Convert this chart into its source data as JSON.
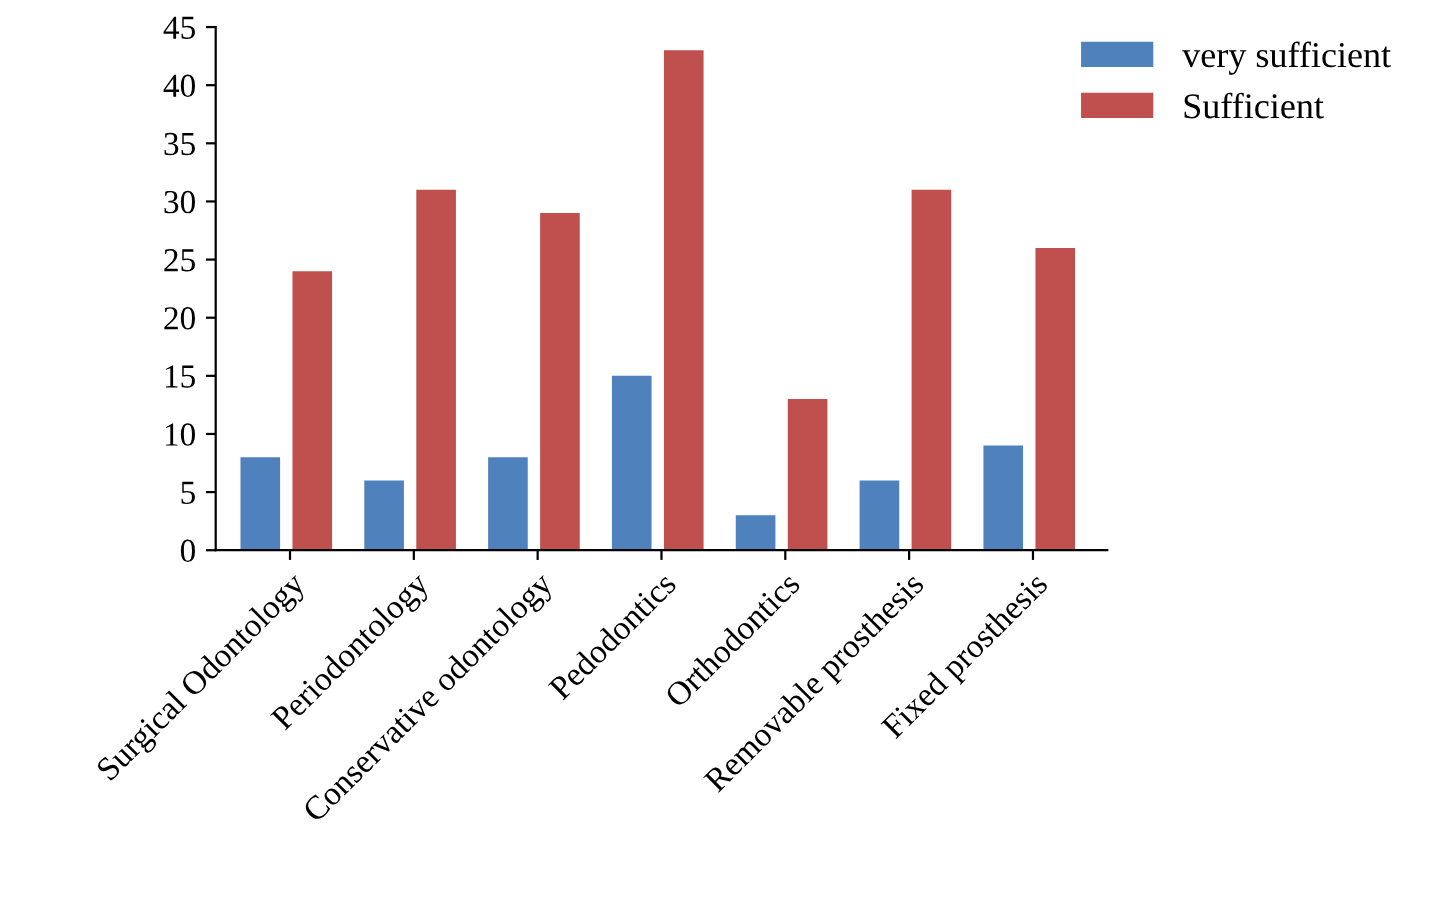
{
  "chart_data": {
    "type": "bar",
    "categories": [
      "Surgical Odontology",
      "Periodontology",
      "Conservative odontology",
      "Pedodontics",
      "Orthodontics",
      "Removable prosthesis",
      "Fixed prosthesis"
    ],
    "series": [
      {
        "name": "very sufficient",
        "color": "#4f81bd",
        "values": [
          8,
          6,
          8,
          15,
          3,
          6,
          9
        ]
      },
      {
        "name": "Sufficient",
        "color": "#c0504d",
        "values": [
          24,
          31,
          29,
          43,
          13,
          31,
          26
        ]
      }
    ],
    "ylim": [
      0,
      45
    ],
    "yticks": [
      0,
      5,
      10,
      15,
      20,
      25,
      30,
      35,
      40,
      45
    ],
    "grid": false,
    "legend": "top right"
  }
}
